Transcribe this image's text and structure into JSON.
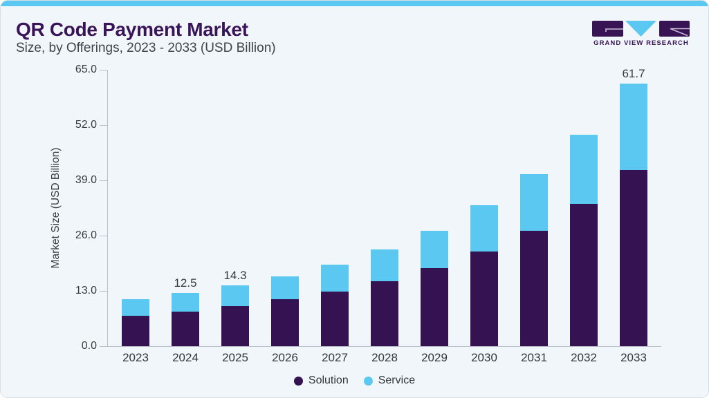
{
  "header": {
    "title": "QR Code Payment Market",
    "subtitle": "Size, by Offerings, 2023 - 2033 (USD Billion)"
  },
  "logo": {
    "text": "GRAND VIEW RESEARCH"
  },
  "chart_data": {
    "type": "bar",
    "stacked": true,
    "title": "QR Code Payment Market",
    "subtitle": "Size, by Offerings, 2023 - 2033 (USD Billion)",
    "categories": [
      "2023",
      "2024",
      "2025",
      "2026",
      "2027",
      "2028",
      "2029",
      "2030",
      "2031",
      "2032",
      "2033"
    ],
    "series": [
      {
        "name": "Solution",
        "color": "#351252",
        "values": [
          7.2,
          8.2,
          9.5,
          11.0,
          12.9,
          15.2,
          18.3,
          22.3,
          27.2,
          33.4,
          41.4
        ]
      },
      {
        "name": "Service",
        "color": "#5BC8F2",
        "values": [
          3.8,
          4.3,
          4.8,
          5.4,
          6.3,
          7.6,
          8.9,
          10.8,
          13.2,
          16.4,
          20.3
        ]
      }
    ],
    "annotations": [
      {
        "category": "2024",
        "text": "12.5"
      },
      {
        "category": "2025",
        "text": "14.3"
      },
      {
        "category": "2033",
        "text": "61.7"
      }
    ],
    "xlabel": "",
    "ylabel": "Market Size (USD Billion)",
    "ylim": [
      0,
      65
    ],
    "ytick_labels": [
      "0.0",
      "13.0",
      "26.0",
      "39.0",
      "52.0",
      "65.0"
    ],
    "grid": false,
    "legend_position": "bottom-center"
  },
  "theme": {
    "accent_blue": "#5BC8F2",
    "brand_purple": "#3A1458",
    "card_background": "#F1F6FA",
    "axis_color": "#B7C0C8",
    "text_color": "#31363C"
  }
}
